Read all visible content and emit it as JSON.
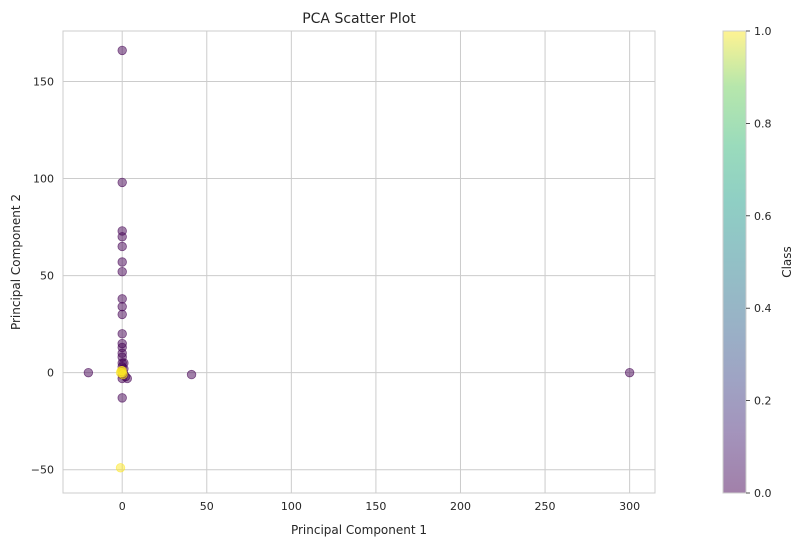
{
  "chart_data": {
    "type": "scatter",
    "title": "PCA Scatter Plot",
    "xlabel": "Principal Component 1",
    "ylabel": "Principal Component 2",
    "xlim": [
      -35,
      315
    ],
    "ylim": [
      -62,
      176
    ],
    "xticks": [
      0,
      50,
      100,
      150,
      200,
      250,
      300
    ],
    "yticks": [
      -50,
      0,
      50,
      100,
      150
    ],
    "xtick_labels": [
      "0",
      "50",
      "100",
      "150",
      "200",
      "250",
      "300"
    ],
    "ytick_labels": [
      "−50",
      "0",
      "50",
      "100",
      "150"
    ],
    "grid": true,
    "colorbar": {
      "label": "Class",
      "range": [
        0,
        1
      ],
      "ticks": [
        0.0,
        0.2,
        0.4,
        0.6,
        0.8,
        1.0
      ],
      "tick_labels": [
        "0.0",
        "0.2",
        "0.4",
        "0.6",
        "0.8",
        "1.0"
      ],
      "colormap": "viridis",
      "alpha": 0.5
    },
    "class_colors": {
      "0": "#440154",
      "1": "#fde725"
    },
    "series": [
      {
        "class": 0,
        "points": [
          [
            0,
            166
          ],
          [
            0,
            98
          ],
          [
            0,
            73
          ],
          [
            0,
            70
          ],
          [
            0,
            65
          ],
          [
            0,
            57
          ],
          [
            0,
            52
          ],
          [
            0,
            38
          ],
          [
            0,
            34
          ],
          [
            0,
            30
          ],
          [
            0,
            20
          ],
          [
            0,
            15
          ],
          [
            0,
            13
          ],
          [
            0,
            10
          ],
          [
            0,
            8
          ],
          [
            0,
            5
          ],
          [
            0,
            3
          ],
          [
            0,
            1
          ],
          [
            0,
            -1
          ],
          [
            0,
            -3
          ],
          [
            0,
            -13
          ],
          [
            0.5,
            0
          ],
          [
            1,
            2
          ],
          [
            1,
            -1
          ],
          [
            1,
            5
          ],
          [
            2,
            -2
          ],
          [
            3,
            -3
          ],
          [
            -20,
            0
          ],
          [
            41,
            -1
          ],
          [
            300,
            0
          ]
        ]
      },
      {
        "class": 1,
        "points": [
          [
            -1,
            -49
          ],
          [
            0,
            0
          ],
          [
            0,
            1
          ],
          [
            -1,
            0
          ],
          [
            0.5,
            -1
          ],
          [
            -0.5,
            1
          ]
        ]
      }
    ]
  }
}
